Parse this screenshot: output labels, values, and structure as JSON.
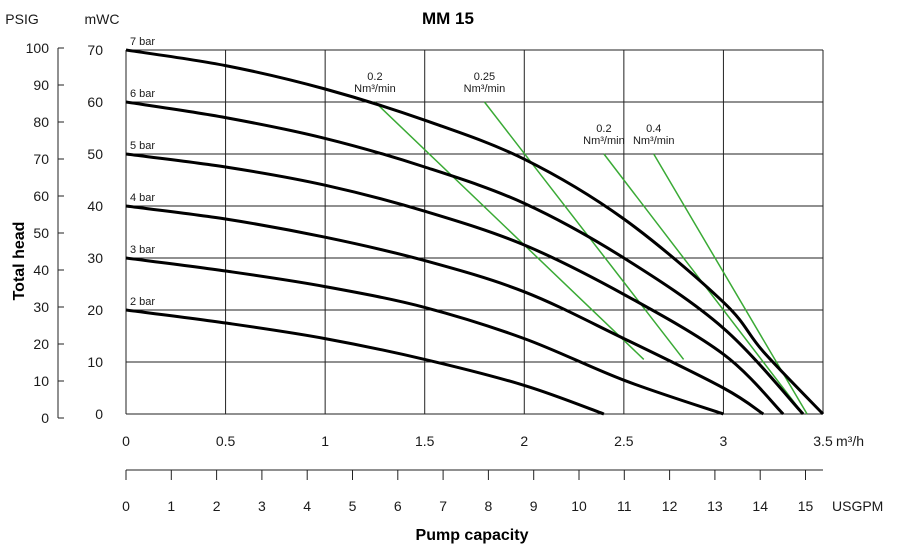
{
  "chart_data": {
    "type": "line",
    "title": "MM 15",
    "ylabel": "Total head",
    "xlabel": "Pump capacity",
    "x_unit_primary": "m³/h",
    "x_unit_secondary": "USGPM",
    "y_unit_left": "PSIG",
    "y_unit_right": "mWC",
    "xlim": [
      0,
      3.5
    ],
    "ylim_mwc": [
      0,
      70
    ],
    "ylim_psig": [
      0,
      100
    ],
    "grid": true,
    "x_ticks": [
      "0",
      "0.5",
      "1",
      "1.5",
      "2",
      "2.5",
      "3",
      "3.5"
    ],
    "mwc_ticks": [
      "0",
      "10",
      "20",
      "30",
      "40",
      "50",
      "60",
      "70"
    ],
    "psig_ticks": [
      "0",
      "10",
      "20",
      "30",
      "40",
      "50",
      "60",
      "70",
      "80",
      "90",
      "100"
    ],
    "usgpm_ticks": [
      "0",
      "1",
      "2",
      "3",
      "4",
      "5",
      "6",
      "7",
      "8",
      "9",
      "10",
      "11",
      "12",
      "13",
      "14",
      "15"
    ],
    "series": [
      {
        "name": "2 bar",
        "points": [
          [
            0,
            20
          ],
          [
            0.5,
            17.5
          ],
          [
            1,
            14.5
          ],
          [
            1.5,
            10.5
          ],
          [
            2,
            5.5
          ],
          [
            2.4,
            0
          ]
        ]
      },
      {
        "name": "3 bar",
        "points": [
          [
            0,
            30
          ],
          [
            0.5,
            27.5
          ],
          [
            1,
            24.5
          ],
          [
            1.5,
            20.5
          ],
          [
            2,
            14.5
          ],
          [
            2.5,
            6.5
          ],
          [
            3,
            0
          ]
        ]
      },
      {
        "name": "4 bar",
        "points": [
          [
            0,
            40
          ],
          [
            0.5,
            37.5
          ],
          [
            1,
            34
          ],
          [
            1.5,
            29.5
          ],
          [
            2,
            23.5
          ],
          [
            2.5,
            14.5
          ],
          [
            3,
            5
          ],
          [
            3.2,
            0
          ]
        ]
      },
      {
        "name": "5 bar",
        "points": [
          [
            0,
            50
          ],
          [
            0.5,
            47.5
          ],
          [
            1,
            44
          ],
          [
            1.5,
            39
          ],
          [
            2,
            32.5
          ],
          [
            2.5,
            23
          ],
          [
            3,
            11.5
          ],
          [
            3.3,
            0
          ]
        ]
      },
      {
        "name": "6 bar",
        "points": [
          [
            0,
            60
          ],
          [
            0.5,
            57
          ],
          [
            1,
            53
          ],
          [
            1.5,
            47.5
          ],
          [
            2,
            40.5
          ],
          [
            2.5,
            30
          ],
          [
            3,
            16.5
          ],
          [
            3.4,
            0
          ]
        ]
      },
      {
        "name": "7 bar",
        "points": [
          [
            0,
            70
          ],
          [
            0.5,
            67
          ],
          [
            1,
            62.5
          ],
          [
            1.5,
            56.5
          ],
          [
            2,
            49
          ],
          [
            2.5,
            37.5
          ],
          [
            3,
            21.5
          ],
          [
            3.2,
            12
          ],
          [
            3.5,
            0
          ]
        ]
      }
    ],
    "air_consumption_lines": [
      {
        "label": [
          "0.2",
          "Nm³/min"
        ],
        "points": [
          [
            1.25,
            60
          ],
          [
            2.6,
            10.5
          ]
        ]
      },
      {
        "label": [
          "0.25",
          "Nm³/min"
        ],
        "points": [
          [
            1.8,
            60
          ],
          [
            2.8,
            10.5
          ]
        ]
      },
      {
        "label": [
          "0.2",
          "Nm³/min"
        ],
        "points": [
          [
            2.4,
            50
          ],
          [
            3.4,
            0
          ]
        ]
      },
      {
        "label": [
          "0.4",
          "Nm³/min"
        ],
        "points": [
          [
            2.65,
            50
          ],
          [
            3.42,
            0
          ]
        ]
      }
    ],
    "curve_color": "#000000",
    "air_line_color": "#3aaa35"
  }
}
